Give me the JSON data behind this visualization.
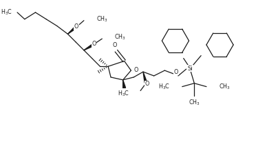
{
  "background_color": "#ffffff",
  "line_color": "#1a1a1a",
  "figsize": [
    3.88,
    2.16
  ],
  "dpi": 100,
  "xlim": [
    0,
    388
  ],
  "ylim": [
    0,
    216
  ]
}
